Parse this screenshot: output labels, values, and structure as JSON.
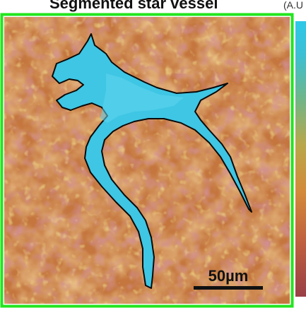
{
  "figure": {
    "title": "Segmented star vessel",
    "colorbar_unit_label": "(A.U",
    "scale_bar_label": "50µm"
  },
  "colors": {
    "selection_outline": "#22e51e",
    "vessel_fill": "#3ec6e4",
    "vessel_outline": "#0a0a0a",
    "background_warm": "#cd8a3a",
    "background_dark": "#a2454a",
    "scale_bar": "#111111"
  }
}
